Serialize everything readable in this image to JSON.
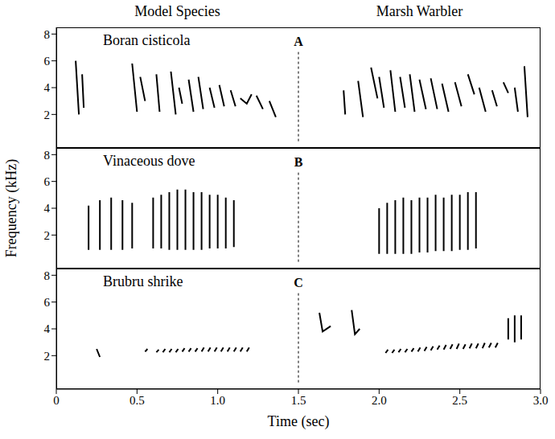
{
  "chart_data": {
    "type": "line",
    "color": "#000000",
    "column_titles": [
      "Model Species",
      "Marsh Warbler"
    ],
    "xlabel": "Time (sec)",
    "ylabel": "Frequency (kHz)",
    "xlim": [
      0,
      3
    ],
    "xticks": [
      0,
      0.5,
      {
        "value": 1,
        "label": "1.0"
      },
      1.5,
      {
        "value": 2,
        "label": "2.0"
      },
      2.5,
      {
        "value": 3,
        "label": "3.0"
      }
    ],
    "panels": [
      {
        "label": "A",
        "title": "Boran cisticola",
        "ylim": [
          -0.5,
          8.5
        ],
        "yticks": [
          2,
          4,
          6,
          8
        ],
        "divider": {
          "x": 1.5,
          "y": [
            0,
            6.8
          ]
        },
        "x": [
          0.12,
          0.14,
          0.14,
          0.16,
          0.17,
          0.17,
          0.47,
          0.5,
          0.5,
          0.52,
          0.55,
          0.55,
          0.62,
          0.64,
          0.64,
          0.71,
          0.74,
          0.74,
          0.76,
          0.78,
          0.78,
          0.82,
          0.85,
          0.85,
          0.88,
          0.91,
          0.91,
          0.95,
          0.98,
          0.98,
          1.01,
          1.04,
          1.04,
          1.08,
          1.11,
          1.11,
          1.14,
          1.18,
          1.21,
          1.21,
          1.24,
          1.28,
          1.28,
          1.32,
          1.36,
          1.36,
          1.78,
          1.79,
          1.79,
          1.87,
          1.9,
          1.9,
          1.95,
          1.99,
          1.99,
          2.0,
          2.03,
          2.03,
          2.07,
          2.1,
          2.1,
          2.13,
          2.16,
          2.16,
          2.19,
          2.22,
          2.22,
          2.25,
          2.29,
          2.29,
          2.32,
          2.36,
          2.36,
          2.39,
          2.43,
          2.43,
          2.47,
          2.51,
          2.51,
          2.55,
          2.59,
          2.59,
          2.62,
          2.66,
          2.66,
          2.7,
          2.73,
          2.73,
          2.77,
          2.8,
          2.8,
          2.84,
          2.86,
          2.86,
          2.9,
          2.92
        ],
        "values": [
          6.0,
          2.0,
          null,
          5.0,
          2.5,
          null,
          5.8,
          2.2,
          null,
          4.8,
          3.0,
          null,
          5.0,
          2.2,
          null,
          5.2,
          2.0,
          null,
          4.0,
          2.8,
          null,
          4.6,
          2.2,
          null,
          4.8,
          2.4,
          null,
          4.0,
          2.5,
          null,
          4.2,
          2.6,
          null,
          3.8,
          2.6,
          null,
          3.2,
          2.8,
          3.5,
          null,
          3.4,
          2.4,
          null,
          3.0,
          1.8,
          null,
          3.8,
          2.0,
          null,
          4.5,
          1.8,
          null,
          5.5,
          3.2,
          null,
          4.8,
          2.5,
          null,
          5.3,
          2.2,
          null,
          4.8,
          2.5,
          null,
          5.0,
          2.2,
          null,
          4.6,
          2.4,
          null,
          4.7,
          2.4,
          null,
          4.3,
          2.2,
          null,
          4.4,
          2.6,
          null,
          5.0,
          3.5,
          null,
          4.0,
          2.2,
          null,
          3.8,
          2.6,
          null,
          4.4,
          3.6,
          null,
          4.0,
          2.2,
          null,
          5.6,
          1.8
        ]
      },
      {
        "label": "B",
        "title": "Vinaceous dove",
        "ylim": [
          -0.5,
          8.5
        ],
        "yticks": [
          2,
          4,
          6,
          8
        ],
        "divider": {
          "x": 1.5,
          "y": [
            0,
            6.8
          ]
        },
        "x": [
          0.2,
          0.2,
          0.2,
          0.27,
          0.27,
          0.27,
          0.34,
          0.34,
          0.34,
          0.41,
          0.41,
          0.41,
          0.47,
          0.47,
          0.47,
          0.6,
          0.6,
          0.6,
          0.65,
          0.65,
          0.65,
          0.7,
          0.7,
          0.7,
          0.75,
          0.75,
          0.75,
          0.8,
          0.8,
          0.8,
          0.85,
          0.85,
          0.85,
          0.9,
          0.9,
          0.9,
          0.95,
          0.95,
          0.95,
          1.0,
          1.0,
          1.0,
          1.05,
          1.05,
          1.05,
          1.1,
          1.1,
          1.1,
          2.0,
          2.0,
          2.0,
          2.05,
          2.05,
          2.05,
          2.1,
          2.1,
          2.1,
          2.15,
          2.15,
          2.15,
          2.2,
          2.2,
          2.2,
          2.25,
          2.25,
          2.25,
          2.3,
          2.3,
          2.3,
          2.35,
          2.35,
          2.35,
          2.4,
          2.4,
          2.4,
          2.45,
          2.45,
          2.45,
          2.5,
          2.5,
          2.5,
          2.55,
          2.55,
          2.55,
          2.6,
          2.6
        ],
        "values": [
          0.9,
          4.2,
          null,
          0.9,
          4.6,
          null,
          0.9,
          4.8,
          null,
          0.9,
          4.6,
          null,
          1.0,
          4.4,
          null,
          1.0,
          4.8,
          null,
          1.0,
          5.0,
          null,
          0.9,
          5.2,
          null,
          0.9,
          5.4,
          null,
          0.9,
          5.4,
          null,
          0.9,
          5.2,
          null,
          0.9,
          5.2,
          null,
          1.0,
          5.0,
          null,
          1.0,
          5.0,
          null,
          1.0,
          4.8,
          null,
          1.1,
          4.6,
          null,
          0.6,
          4.0,
          null,
          0.6,
          4.4,
          null,
          0.6,
          4.6,
          null,
          0.6,
          4.8,
          null,
          0.6,
          4.6,
          null,
          0.7,
          4.8,
          null,
          0.7,
          4.8,
          null,
          0.8,
          5.0,
          null,
          0.8,
          4.8,
          null,
          0.8,
          5.0,
          null,
          0.9,
          5.0,
          null,
          0.9,
          5.2,
          null,
          1.0,
          5.2
        ]
      },
      {
        "label": "C",
        "title": "Brubru shrike",
        "ylim": [
          -0.5,
          8.5
        ],
        "yticks": [
          2,
          4,
          6,
          8
        ],
        "divider": {
          "x": 1.5,
          "y": [
            0,
            6.8
          ]
        },
        "x": [
          0.25,
          0.27,
          0.27,
          0.55,
          0.565,
          0.565,
          0.62,
          0.635,
          0.635,
          0.66,
          0.675,
          0.675,
          0.7,
          0.715,
          0.715,
          0.74,
          0.755,
          0.755,
          0.78,
          0.795,
          0.795,
          0.82,
          0.835,
          0.835,
          0.86,
          0.875,
          0.875,
          0.9,
          0.915,
          0.915,
          0.94,
          0.955,
          0.955,
          0.98,
          0.995,
          0.995,
          1.02,
          1.035,
          1.035,
          1.06,
          1.075,
          1.075,
          1.1,
          1.115,
          1.115,
          1.14,
          1.155,
          1.155,
          1.18,
          1.195,
          1.195,
          1.63,
          1.65,
          1.7,
          1.7,
          1.83,
          1.85,
          1.88,
          1.88,
          2.04,
          2.055,
          2.055,
          2.08,
          2.095,
          2.095,
          2.12,
          2.135,
          2.135,
          2.16,
          2.175,
          2.175,
          2.2,
          2.215,
          2.215,
          2.24,
          2.255,
          2.255,
          2.28,
          2.295,
          2.295,
          2.32,
          2.335,
          2.335,
          2.36,
          2.375,
          2.375,
          2.4,
          2.415,
          2.415,
          2.44,
          2.455,
          2.455,
          2.48,
          2.495,
          2.495,
          2.52,
          2.535,
          2.535,
          2.56,
          2.575,
          2.575,
          2.6,
          2.615,
          2.615,
          2.64,
          2.655,
          2.655,
          2.68,
          2.695,
          2.695,
          2.72,
          2.735,
          2.735,
          2.8,
          2.8,
          2.8,
          2.84,
          2.84,
          2.84,
          2.88,
          2.88
        ],
        "values": [
          2.5,
          1.9,
          null,
          2.3,
          2.5,
          null,
          2.25,
          2.45,
          null,
          2.25,
          2.5,
          null,
          2.25,
          2.5,
          null,
          2.25,
          2.5,
          null,
          2.3,
          2.55,
          null,
          2.3,
          2.55,
          null,
          2.3,
          2.55,
          null,
          2.3,
          2.6,
          null,
          2.3,
          2.6,
          null,
          2.3,
          2.6,
          null,
          2.3,
          2.6,
          null,
          2.3,
          2.6,
          null,
          2.3,
          2.6,
          null,
          2.3,
          2.6,
          null,
          2.3,
          2.6,
          null,
          5.2,
          3.8,
          4.2,
          null,
          5.4,
          3.6,
          4.0,
          null,
          2.2,
          2.45,
          null,
          2.2,
          2.45,
          null,
          2.25,
          2.5,
          null,
          2.25,
          2.5,
          null,
          2.3,
          2.55,
          null,
          2.3,
          2.6,
          null,
          2.35,
          2.65,
          null,
          2.4,
          2.7,
          null,
          2.45,
          2.75,
          null,
          2.45,
          2.8,
          null,
          2.5,
          2.85,
          null,
          2.5,
          2.9,
          null,
          2.5,
          2.85,
          null,
          2.55,
          2.9,
          null,
          2.55,
          2.9,
          null,
          2.55,
          2.95,
          null,
          2.6,
          2.95,
          null,
          2.6,
          2.95,
          null,
          4.8,
          3.2,
          null,
          5.0,
          3.0,
          null,
          5.0,
          3.2
        ]
      }
    ]
  }
}
